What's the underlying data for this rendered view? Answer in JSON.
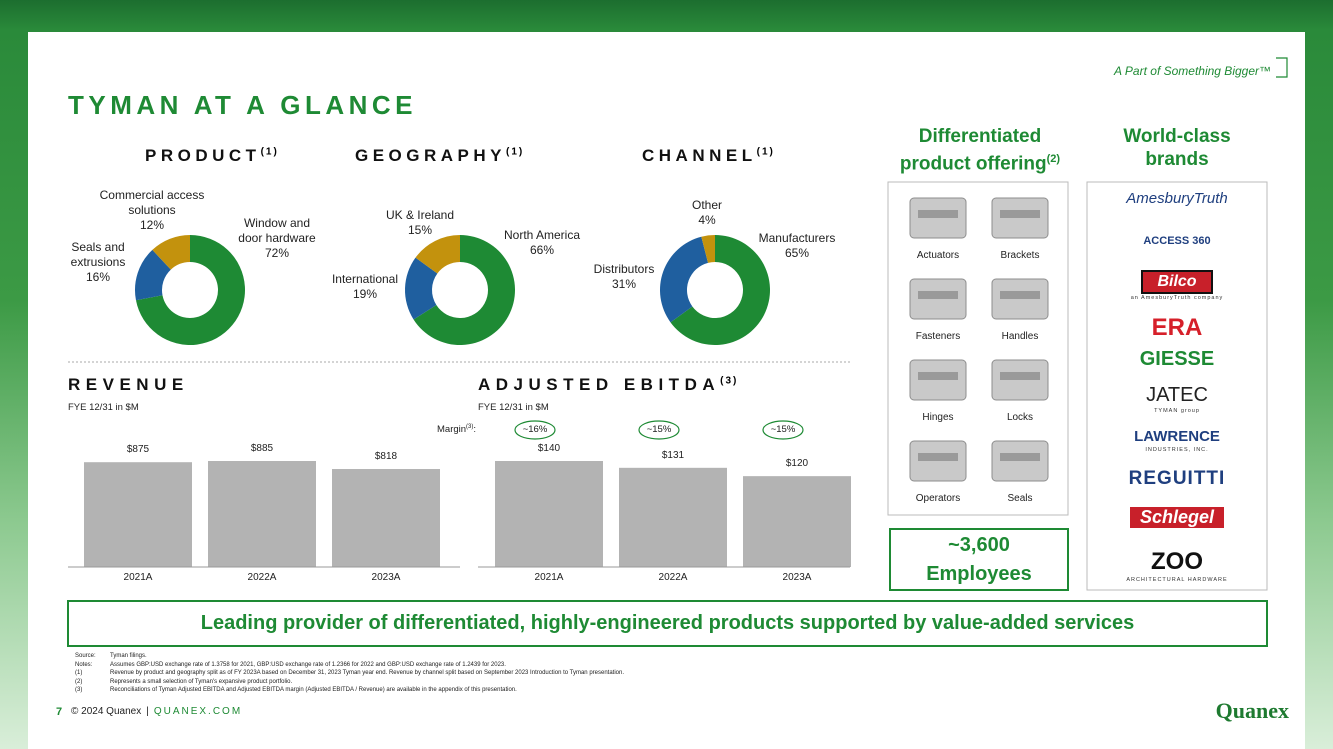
{
  "header": {
    "tagline": "A Part of Something Bigger™",
    "title": "TYMAN AT A GLANCE"
  },
  "chart_data": [
    {
      "type": "pie",
      "title": "PRODUCT",
      "title_note": "(1)",
      "categories": [
        "Window and door hardware",
        "Seals and extrusions",
        "Commercial access solutions"
      ],
      "values": [
        72,
        16,
        12
      ],
      "value_labels": [
        "72%",
        "16%",
        "12%"
      ],
      "colors": [
        "#1e8a34",
        "#1f5f9f",
        "#c3920d"
      ]
    },
    {
      "type": "pie",
      "title": "GEOGRAPHY",
      "title_note": "(1)",
      "categories": [
        "North America",
        "International",
        "UK & Ireland"
      ],
      "values": [
        66,
        19,
        15
      ],
      "value_labels": [
        "66%",
        "19%",
        "15%"
      ],
      "colors": [
        "#1e8a34",
        "#1f5f9f",
        "#c3920d"
      ]
    },
    {
      "type": "pie",
      "title": "CHANNEL",
      "title_note": "(1)",
      "categories": [
        "Manufacturers",
        "Distributors",
        "Other"
      ],
      "values": [
        65,
        31,
        4
      ],
      "value_labels": [
        "65%",
        "31%",
        "4%"
      ],
      "colors": [
        "#1e8a34",
        "#1f5f9f",
        "#c3920d"
      ]
    },
    {
      "type": "bar",
      "title": "REVENUE",
      "subtitle": "FYE 12/31 in $M",
      "categories": [
        "2021A",
        "2022A",
        "2023A"
      ],
      "values": [
        875,
        885,
        818
      ],
      "value_labels": [
        "$875",
        "$885",
        "$818"
      ],
      "color": "#b3b3b3"
    },
    {
      "type": "bar",
      "title": "ADJUSTED EBITDA",
      "title_note": "(3)",
      "subtitle": "FYE 12/31 in $M",
      "categories": [
        "2021A",
        "2022A",
        "2023A"
      ],
      "values": [
        140,
        131,
        120
      ],
      "value_labels": [
        "$140",
        "$131",
        "$120"
      ],
      "color": "#b3b3b3",
      "margin_label": {
        "text": "Margin",
        "note": "(3)",
        "end": ":"
      },
      "margins": [
        "~16%",
        "~15%",
        "~15%"
      ]
    }
  ],
  "offering": {
    "title": "Differentiated product offering",
    "title_note": "(2)",
    "products": [
      "Actuators",
      "Brackets",
      "Fasteners",
      "Handles",
      "Hinges",
      "Locks",
      "Operators",
      "Seals"
    ]
  },
  "employees": {
    "count": "~3,600",
    "label": "Employees"
  },
  "brands": {
    "title": "World-class brands",
    "items": [
      {
        "name": "AmesburyTruth"
      },
      {
        "name": "ACCESS 360"
      },
      {
        "name": "Bilco",
        "sub": "an AmesburyTruth company"
      },
      {
        "name": "ERA"
      },
      {
        "name": "GIESSE"
      },
      {
        "name": "JATEC",
        "sub": "TYMAN group"
      },
      {
        "name": "LAWRENCE",
        "sub": "INDUSTRIES, INC."
      },
      {
        "name": "REGUITTI"
      },
      {
        "name": "Schlegel"
      },
      {
        "name": "ZOO",
        "sub": "ARCHITECTURAL HARDWARE"
      }
    ]
  },
  "banner": "Leading provider of differentiated, highly-engineered products supported by value-added services",
  "footnotes": [
    {
      "key": "Source:",
      "text": "Tyman filings."
    },
    {
      "key": "Notes:",
      "text": "Assumes GBP:USD exchange rate of 1.3758 for 2021, GBP:USD exchange rate of 1.2366 for 2022 and GBP:USD exchange rate of 1.2439 for 2023."
    },
    {
      "key": "(1)",
      "text": "Revenue by product and geography split as of FY 2023A based on December 31, 2023 Tyman year end. Revenue by channel split based on September 2023 Introduction to Tyman presentation."
    },
    {
      "key": "(2)",
      "text": "Represents a small selection of Tyman's expansive product portfolio."
    },
    {
      "key": "(3)",
      "text": "Reconciliations of Tyman Adjusted EBITDA and Adjusted EBITDA margin (Adjusted EBITDA / Revenue) are available in the appendix of this presentation."
    }
  ],
  "footer": {
    "page": "7",
    "copyright": "© 2024 Quanex",
    "sep": "|",
    "site": "QUANEX.COM",
    "logo": "Quanex"
  }
}
